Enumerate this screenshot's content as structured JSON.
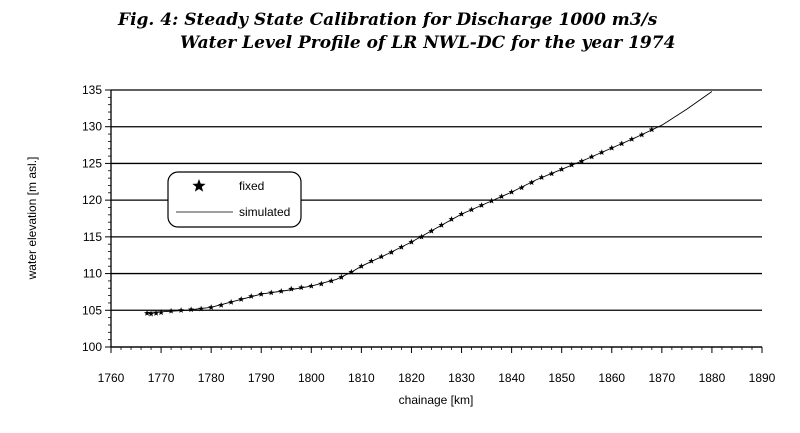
{
  "chart_data": {
    "type": "line",
    "title": "Fig. 4: Steady State Calibration for Discharge 1000 m3/s",
    "subtitle": "Water Level Profile of LR NWL-DC for the year 1974",
    "xlabel": "chainage [km]",
    "ylabel": "water elevation [m asl.]",
    "xlim": [
      1760,
      1890
    ],
    "ylim": [
      100,
      135
    ],
    "xticks": [
      1760,
      1770,
      1780,
      1790,
      1800,
      1810,
      1820,
      1830,
      1840,
      1850,
      1860,
      1870,
      1880,
      1890
    ],
    "yticks": [
      100,
      105,
      110,
      115,
      120,
      125,
      130,
      135
    ],
    "grid": "horizontal",
    "legend": {
      "placement": "left",
      "entries": [
        "fixed",
        "simulated"
      ]
    },
    "series": [
      {
        "name": "fixed",
        "marker": "star",
        "x": [
          1767.2,
          1768,
          1769,
          1770,
          1772,
          1774,
          1776,
          1778,
          1780,
          1782,
          1784,
          1786,
          1788,
          1790,
          1792,
          1794,
          1796,
          1798,
          1800,
          1802,
          1804,
          1806,
          1808,
          1810,
          1812,
          1814,
          1816,
          1818,
          1820,
          1822,
          1824,
          1826,
          1828,
          1830,
          1832,
          1834,
          1836,
          1838,
          1840,
          1842,
          1844,
          1846,
          1848,
          1850,
          1852,
          1854,
          1856,
          1858,
          1860,
          1862,
          1864,
          1866,
          1868
        ],
        "y": [
          104.6,
          104.5,
          104.6,
          104.7,
          104.9,
          105.0,
          105.1,
          105.2,
          105.4,
          105.7,
          106.1,
          106.5,
          106.9,
          107.2,
          107.4,
          107.6,
          107.9,
          108.1,
          108.3,
          108.6,
          109.0,
          109.5,
          110.2,
          111.0,
          111.7,
          112.3,
          112.9,
          113.6,
          114.3,
          115.0,
          115.8,
          116.6,
          117.4,
          118.1,
          118.7,
          119.3,
          119.9,
          120.5,
          121.1,
          121.7,
          122.4,
          123.1,
          123.6,
          124.2,
          124.8,
          125.3,
          125.9,
          126.5,
          127.1,
          127.7,
          128.3,
          128.9,
          129.6
        ]
      },
      {
        "name": "simulated",
        "x": [
          1767,
          1770,
          1775,
          1780,
          1785,
          1790,
          1795,
          1800,
          1805,
          1808,
          1810,
          1815,
          1820,
          1825,
          1830,
          1835,
          1840,
          1845,
          1850,
          1855,
          1860,
          1865,
          1870,
          1875,
          1880
        ],
        "y": [
          104.7,
          104.8,
          105.0,
          105.4,
          106.3,
          107.2,
          107.7,
          108.3,
          109.2,
          110.2,
          111.0,
          112.6,
          114.3,
          116.2,
          118.1,
          119.6,
          121.1,
          122.8,
          124.2,
          125.6,
          127.1,
          128.6,
          130.2,
          132.4,
          134.8
        ]
      }
    ]
  }
}
